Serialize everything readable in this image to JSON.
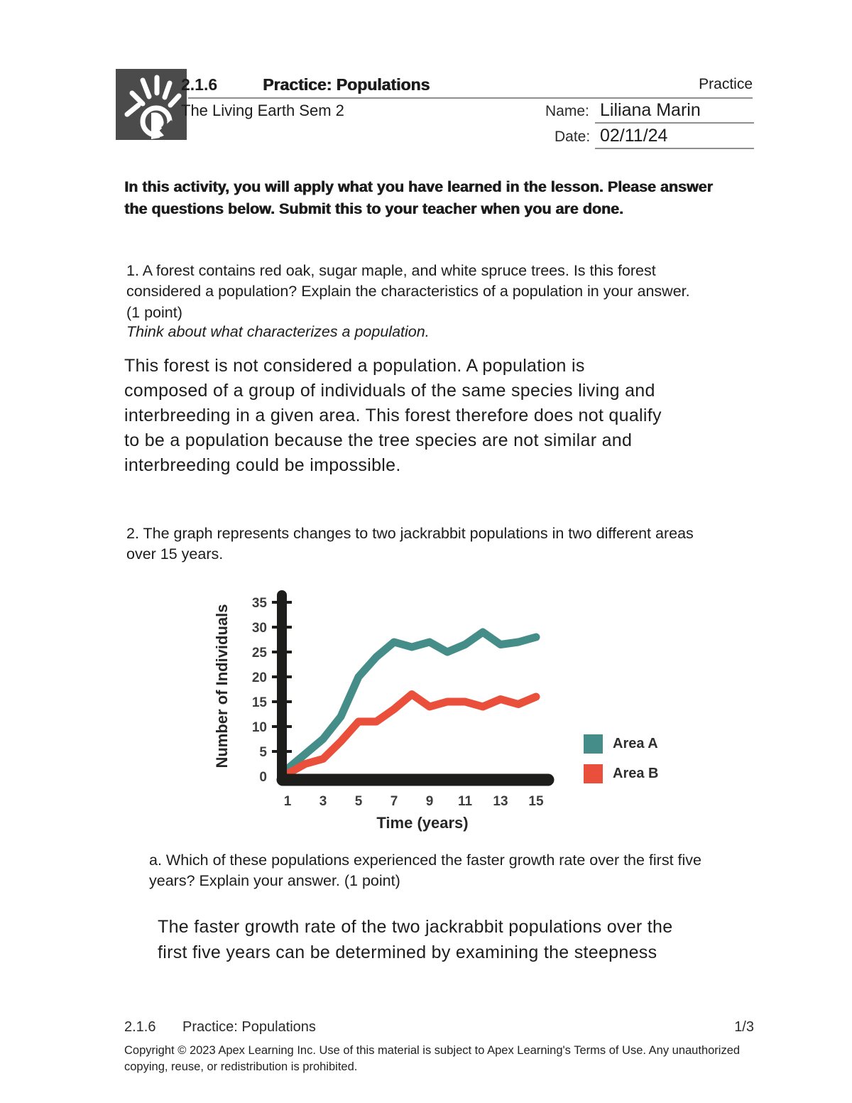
{
  "header": {
    "lesson_number": "2.1.6",
    "title": "Practice: Populations",
    "doc_type": "Practice",
    "course": "The Living Earth Sem 2",
    "name_label": "Name:",
    "name_value": "Liliana Marin",
    "date_label": "Date:",
    "date_value": "02/11/24"
  },
  "intro": "In this activity, you will apply what you have learned in the lesson. Please answer\nthe questions below. Submit this to your teacher when you are done.",
  "question1": {
    "prompt": "1. A forest contains red oak, sugar maple, and white spruce trees. Is this forest\nconsidered a population? Explain the characteristics of a population in your answer.\n(1 point)",
    "hint": "Think about what characterizes a population.",
    "answer": "This forest is not considered a population. A population is\ncomposed of a group of individuals of the same species living and\ninterbreeding in a given area. This forest therefore does not qualify\nto be a population because the tree species are not similar and\ninterbreeding could be impossible."
  },
  "question2": {
    "prompt": "2. The graph represents changes to two jackrabbit populations in two different areas\nover 15 years.",
    "sub_a_prompt": "a. Which of these populations experienced the faster growth rate over the first five\nyears? Explain your answer. (1 point)",
    "sub_a_answer": "The faster growth rate of the two jackrabbit populations over the\nfirst five years can be determined by examining the steepness"
  },
  "chart_data": {
    "type": "line",
    "title": "",
    "xlabel": "Time (years)",
    "ylabel": "Number of Individuals",
    "x": [
      1,
      2,
      3,
      4,
      5,
      6,
      7,
      8,
      9,
      10,
      11,
      12,
      13,
      14,
      15
    ],
    "xticks": [
      1,
      3,
      5,
      7,
      9,
      11,
      13,
      15
    ],
    "yticks": [
      0,
      5,
      10,
      15,
      20,
      25,
      30,
      35
    ],
    "ylim": [
      0,
      37
    ],
    "xlim": [
      1,
      15
    ],
    "grid": false,
    "legend_position": "right",
    "axis_color": "#1d1d1b",
    "tick_label_color": "#3d3d3d",
    "series": [
      {
        "name": "Area A",
        "color": "#458D88",
        "values": [
          1.5,
          4.5,
          7.5,
          12,
          20,
          24,
          27,
          26,
          27,
          25,
          26.5,
          29,
          26.5,
          27,
          28
        ]
      },
      {
        "name": "Area B",
        "color": "#E94F3B",
        "values": [
          0.5,
          2.5,
          3.5,
          7,
          11,
          11,
          13.5,
          16.5,
          14,
          15,
          15,
          14,
          15.5,
          14.5,
          16
        ]
      }
    ]
  },
  "footer": {
    "lesson_number": "2.1.6",
    "title": "Practice: Populations",
    "page_number": "1/3",
    "copyright": "Copyright © 2023 Apex Learning Inc. Use of this material is subject to Apex Learning's Terms of Use. Any unauthorized\ncopying, reuse, or redistribution is prohibited."
  }
}
